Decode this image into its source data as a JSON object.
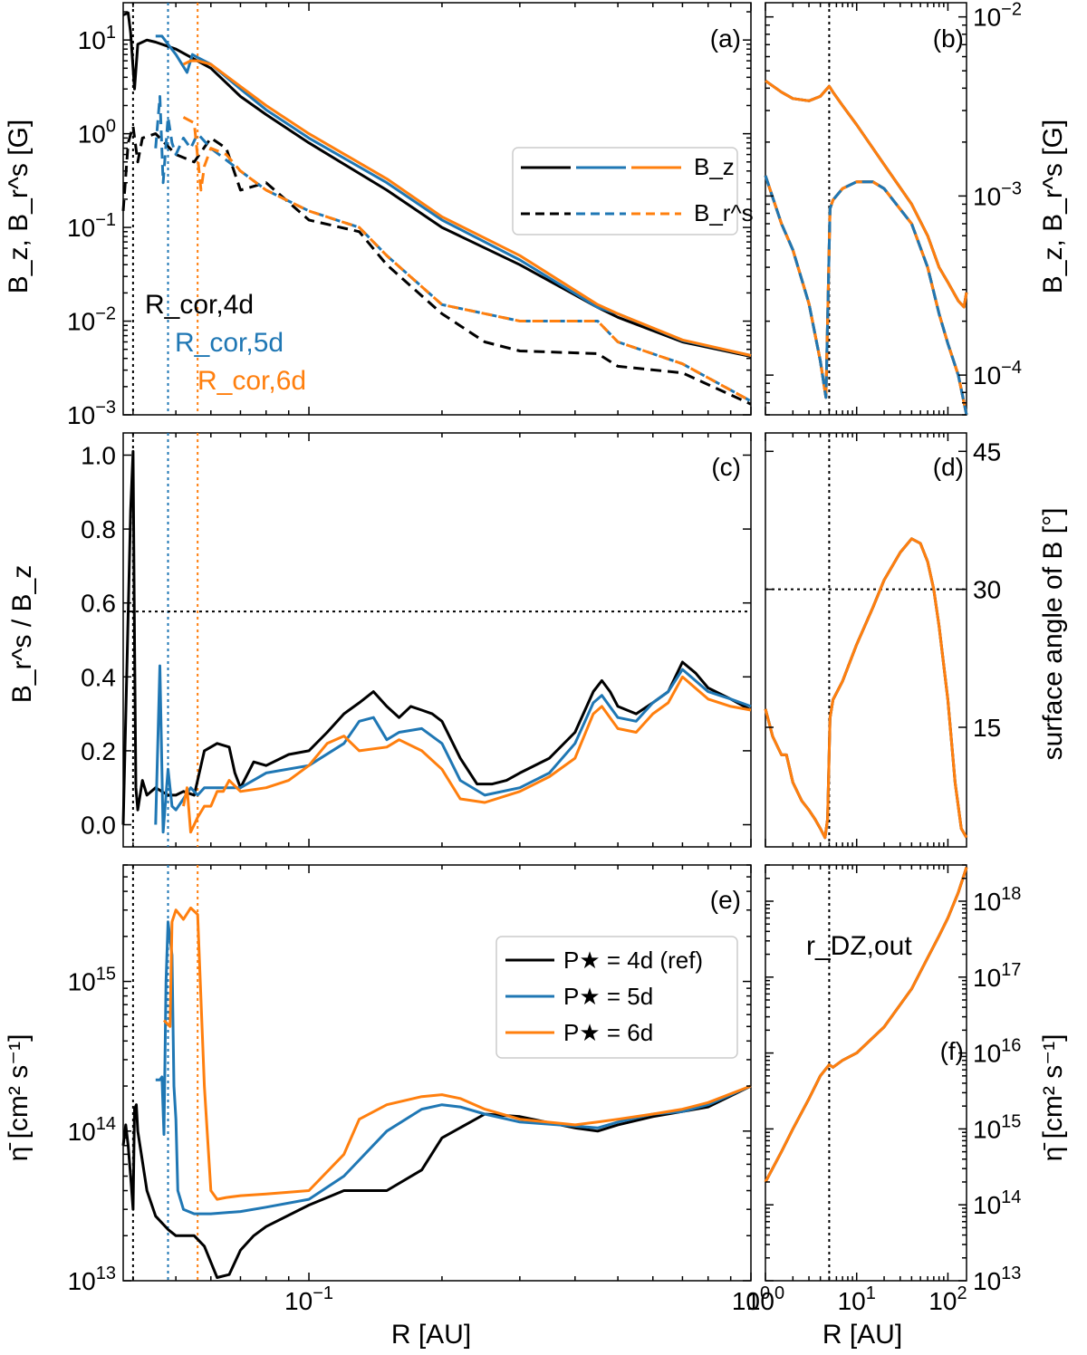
{
  "chart_data": {
    "type": "line",
    "colors": {
      "p4": "#000000",
      "p5": "#1f77b4",
      "p6": "#ff7f0e"
    },
    "xlabel_left": "R [AU]",
    "xlabel_right": "R [AU]",
    "panel_labels": {
      "a": "(a)",
      "b": "(b)",
      "c": "(c)",
      "d": "(d)",
      "e": "(e)",
      "f": "(f)"
    },
    "x_ticks_left": [
      "10^-1",
      "10^0"
    ],
    "x_ticks_right": [
      "10^0",
      "10^1",
      "10^2"
    ],
    "ylabel_a": "B_z, B_r^s [G]",
    "ylabel_b": "B_z, B_r^s [G]",
    "ylabel_c": "B_r^s / B_z",
    "ylabel_d": "surface angle of B [°]",
    "ylabel_e": "η̄ [cm² s⁻¹]",
    "ylabel_f": "η̄ [cm² s⁻¹]",
    "y_ticks_a": [
      "10^1",
      "10^0",
      "10^-1",
      "10^-2",
      "10^-3"
    ],
    "y_ticks_b": [
      "10^-2",
      "10^-3",
      "10^-4"
    ],
    "y_ticks_c": [
      "1.0",
      "0.8",
      "0.6",
      "0.4",
      "0.2",
      "0.0"
    ],
    "y_ticks_d": [
      "45",
      "30",
      "15"
    ],
    "y_ticks_e": [
      "10^15",
      "10^14",
      "10^13"
    ],
    "y_ticks_f": [
      "10^18",
      "10^17",
      "10^16",
      "10^15",
      "10^14",
      "10^13"
    ],
    "annotations": {
      "rcor4": "R_cor,4d",
      "rcor5": "R_cor,5d",
      "rcor6": "R_cor,6d",
      "rdz": "r_DZ,out"
    },
    "legend_a": {
      "bz": "B_z",
      "br": "B_r^s"
    },
    "legend_e": {
      "p4": "P★ = 4d (ref)",
      "p5": "P★ = 5d",
      "p6": "P★ = 6d"
    },
    "vlines_left": [
      0.04,
      0.048,
      0.056
    ],
    "vline_right": 5,
    "hline_c": 0.577,
    "hline_d": 30,
    "xlim_left": [
      0.038,
      1.0
    ],
    "xlim_right": [
      1,
      160
    ],
    "ylim_a": [
      0.001,
      25
    ],
    "ylim_b": [
      6e-05,
      0.012
    ],
    "ylim_c": [
      -0.06,
      1.06
    ],
    "ylim_d": [
      2,
      47
    ],
    "ylim_e": [
      10000000000000.0,
      6000000000000000.0
    ],
    "ylim_f": [
      10000000000000.0,
      3e+18
    ],
    "panel_a": {
      "bz": [
        {
          "name": "P★ = 4d",
          "color": "p4",
          "x": [
            0.038,
            0.039,
            0.0395,
            0.0403,
            0.041,
            0.043,
            0.045,
            0.05,
            0.06,
            0.07,
            0.08,
            0.1,
            0.15,
            0.2,
            0.3,
            0.45,
            0.5,
            0.7,
            1.0
          ],
          "y": [
            18.5,
            19.5,
            12,
            3,
            9,
            10,
            9.5,
            8,
            5,
            2.5,
            1.6,
            0.8,
            0.25,
            0.1,
            0.04,
            0.014,
            0.011,
            0.006,
            0.0042
          ]
        },
        {
          "name": "P★ = 5d",
          "color": "p5",
          "x": [
            0.045,
            0.0465,
            0.048,
            0.05,
            0.053,
            0.0545,
            0.056,
            0.06,
            0.07,
            0.08,
            0.1,
            0.15,
            0.2,
            0.3,
            0.45,
            0.5,
            0.7,
            1.0
          ],
          "y": [
            11,
            11,
            9,
            7,
            4.5,
            7,
            6.5,
            5.5,
            3,
            1.8,
            0.9,
            0.3,
            0.12,
            0.045,
            0.014,
            0.012,
            0.0062,
            0.0043
          ]
        },
        {
          "name": "P★ = 6d",
          "color": "p6",
          "x": [
            0.052,
            0.054,
            0.056,
            0.06,
            0.07,
            0.08,
            0.1,
            0.15,
            0.2,
            0.3,
            0.45,
            0.5,
            0.7,
            1.0
          ],
          "y": [
            5.5,
            6,
            6,
            5.5,
            3.2,
            2,
            1,
            0.33,
            0.13,
            0.05,
            0.015,
            0.012,
            0.0063,
            0.0043
          ]
        }
      ],
      "br": [
        {
          "name": "P★ = 4d",
          "color": "p4",
          "x": [
            0.038,
            0.039,
            0.04,
            0.041,
            0.042,
            0.045,
            0.05,
            0.055,
            0.06,
            0.065,
            0.07,
            0.08,
            0.1,
            0.13,
            0.15,
            0.2,
            0.25,
            0.3,
            0.45,
            0.5,
            0.7,
            1.0
          ],
          "y": [
            0.15,
            0.8,
            1.2,
            0.5,
            0.9,
            1.0,
            0.6,
            0.5,
            0.9,
            0.7,
            0.25,
            0.3,
            0.12,
            0.09,
            0.04,
            0.012,
            0.006,
            0.0048,
            0.0045,
            0.0033,
            0.0028,
            0.0013
          ]
        },
        {
          "name": "P★ = 5d",
          "color": "p5",
          "x": [
            0.045,
            0.046,
            0.0468,
            0.048,
            0.049,
            0.05,
            0.052,
            0.054,
            0.056,
            0.06,
            0.07,
            0.08,
            0.1,
            0.13,
            0.15,
            0.2,
            0.3,
            0.45,
            0.5,
            0.7,
            1.0
          ],
          "y": [
            0.7,
            2.5,
            0.3,
            1.5,
            0.8,
            0.6,
            0.9,
            0.7,
            1.0,
            0.7,
            0.4,
            0.25,
            0.15,
            0.1,
            0.05,
            0.015,
            0.01,
            0.01,
            0.006,
            0.0035,
            0.0014
          ]
        },
        {
          "name": "P★ = 6d",
          "color": "p6",
          "x": [
            0.052,
            0.055,
            0.057,
            0.058,
            0.06,
            0.065,
            0.07,
            0.08,
            0.1,
            0.13,
            0.15,
            0.2,
            0.3,
            0.45,
            0.5,
            0.7,
            1.0
          ],
          "y": [
            1.5,
            1.3,
            0.25,
            0.45,
            0.7,
            0.6,
            0.4,
            0.25,
            0.15,
            0.1,
            0.05,
            0.015,
            0.01,
            0.01,
            0.006,
            0.0035,
            0.0014
          ]
        }
      ]
    },
    "panel_b": {
      "bz": {
        "x": [
          1,
          1.5,
          2,
          3,
          4,
          5,
          5.5,
          7,
          10,
          20,
          40,
          60,
          80,
          100,
          130,
          150,
          160
        ],
        "y": [
          0.0044,
          0.0038,
          0.0035,
          0.0034,
          0.0036,
          0.0041,
          0.0038,
          0.0032,
          0.0025,
          0.0015,
          0.0009,
          0.0006,
          0.0004,
          0.00033,
          0.00026,
          0.00024,
          0.00029
        ]
      },
      "br": {
        "x": [
          1,
          1.5,
          2,
          3,
          4,
          4.6,
          5.1,
          5.5,
          7,
          10,
          15,
          20,
          40,
          60,
          80,
          100,
          130,
          160
        ],
        "y": [
          0.0013,
          0.0007,
          0.0005,
          0.00025,
          0.00012,
          7.5e-05,
          0.00085,
          0.00095,
          0.0011,
          0.0012,
          0.0012,
          0.0011,
          0.0007,
          0.0004,
          0.00022,
          0.00015,
          0.0001,
          6e-05
        ]
      }
    },
    "panel_c": [
      {
        "name": "P★ = 4d",
        "color": "p4",
        "x": [
          0.038,
          0.0395,
          0.04,
          0.0403,
          0.0406,
          0.041,
          0.042,
          0.043,
          0.045,
          0.048,
          0.05,
          0.052,
          0.055,
          0.058,
          0.062,
          0.066,
          0.068,
          0.07,
          0.075,
          0.08,
          0.09,
          0.1,
          0.11,
          0.12,
          0.13,
          0.14,
          0.15,
          0.16,
          0.17,
          0.18,
          0.19,
          0.2,
          0.22,
          0.24,
          0.26,
          0.28,
          0.3,
          0.35,
          0.4,
          0.44,
          0.46,
          0.48,
          0.5,
          0.55,
          0.6,
          0.65,
          0.7,
          0.75,
          0.8,
          0.9,
          1.0
        ],
        "y": [
          0.0,
          0.85,
          1.01,
          0.5,
          0.1,
          0.04,
          0.12,
          0.08,
          0.1,
          0.08,
          0.08,
          0.09,
          0.08,
          0.2,
          0.22,
          0.21,
          0.14,
          0.1,
          0.17,
          0.16,
          0.19,
          0.2,
          0.25,
          0.3,
          0.33,
          0.36,
          0.32,
          0.29,
          0.32,
          0.31,
          0.3,
          0.28,
          0.18,
          0.11,
          0.11,
          0.12,
          0.14,
          0.18,
          0.25,
          0.36,
          0.39,
          0.36,
          0.32,
          0.3,
          0.33,
          0.36,
          0.44,
          0.41,
          0.37,
          0.34,
          0.31
        ]
      },
      {
        "name": "P★ = 5d",
        "color": "p5",
        "x": [
          0.045,
          0.046,
          0.0468,
          0.048,
          0.049,
          0.05,
          0.052,
          0.054,
          0.056,
          0.058,
          0.062,
          0.07,
          0.08,
          0.1,
          0.12,
          0.13,
          0.14,
          0.15,
          0.16,
          0.18,
          0.2,
          0.22,
          0.25,
          0.3,
          0.35,
          0.4,
          0.44,
          0.46,
          0.5,
          0.55,
          0.6,
          0.65,
          0.7,
          0.8,
          0.9,
          1.0
        ],
        "y": [
          0.0,
          0.43,
          -0.02,
          0.15,
          0.05,
          0.04,
          0.07,
          0.1,
          0.08,
          0.1,
          0.1,
          0.1,
          0.14,
          0.16,
          0.22,
          0.28,
          0.29,
          0.23,
          0.25,
          0.26,
          0.22,
          0.12,
          0.08,
          0.1,
          0.14,
          0.22,
          0.33,
          0.35,
          0.29,
          0.28,
          0.33,
          0.36,
          0.42,
          0.36,
          0.34,
          0.32
        ]
      },
      {
        "name": "P★ = 6d",
        "color": "p6",
        "x": [
          0.052,
          0.053,
          0.054,
          0.055,
          0.056,
          0.058,
          0.06,
          0.062,
          0.064,
          0.066,
          0.07,
          0.08,
          0.09,
          0.1,
          0.11,
          0.12,
          0.13,
          0.15,
          0.16,
          0.18,
          0.2,
          0.22,
          0.25,
          0.3,
          0.35,
          0.4,
          0.44,
          0.46,
          0.5,
          0.55,
          0.6,
          0.65,
          0.7,
          0.8,
          0.9,
          1.0
        ],
        "y": [
          0.05,
          0.1,
          -0.02,
          0.0,
          0.02,
          0.05,
          0.05,
          0.09,
          0.09,
          0.12,
          0.09,
          0.1,
          0.12,
          0.16,
          0.22,
          0.24,
          0.2,
          0.21,
          0.23,
          0.2,
          0.15,
          0.07,
          0.06,
          0.09,
          0.13,
          0.18,
          0.3,
          0.32,
          0.26,
          0.25,
          0.3,
          0.33,
          0.4,
          0.34,
          0.32,
          0.31
        ]
      }
    ],
    "panel_d": {
      "x": [
        1,
        1.2,
        1.5,
        1.7,
        2,
        2.5,
        3,
        3.5,
        4,
        4.5,
        4.8,
        5.1,
        5.5,
        7,
        10,
        15,
        20,
        30,
        40,
        50,
        60,
        70,
        80,
        100,
        120,
        140,
        160
      ],
      "y": [
        17,
        14,
        12,
        12,
        9,
        7,
        6,
        5,
        4,
        3,
        5,
        16,
        18,
        20,
        24,
        28,
        31,
        34,
        35.5,
        35,
        33,
        30,
        26,
        18,
        9,
        4,
        3
      ]
    },
    "panel_e": [
      {
        "name": "P★ = 4d (ref)",
        "color": "p4",
        "x": [
          0.038,
          0.0385,
          0.039,
          0.0395,
          0.04,
          0.0403,
          0.0407,
          0.041,
          0.043,
          0.045,
          0.048,
          0.05,
          0.055,
          0.058,
          0.062,
          0.066,
          0.07,
          0.075,
          0.08,
          0.1,
          0.12,
          0.13,
          0.15,
          0.18,
          0.2,
          0.25,
          0.3,
          0.4,
          0.45,
          0.5,
          0.6,
          0.7,
          0.8,
          1.0
        ],
        "y": [
          80000000000000.0,
          110000000000000.0,
          80000000000000.0,
          50000000000000.0,
          30000000000000.0,
          140000000000000.0,
          150000000000000.0,
          100000000000000.0,
          40000000000000.0,
          27000000000000.0,
          22000000000000.0,
          20000000000000.0,
          20000000000000.0,
          17000000000000.0,
          10500000000000.0,
          11000000000000.0,
          16000000000000.0,
          20000000000000.0,
          23000000000000.0,
          32000000000000.0,
          40000000000000.0,
          40000000000000.0,
          40000000000000.0,
          55000000000000.0,
          90000000000000.0,
          130000000000000.0,
          125000000000000.0,
          105000000000000.0,
          100000000000000.0,
          110000000000000.0,
          125000000000000.0,
          135000000000000.0,
          145000000000000.0,
          200000000000000.0
        ]
      },
      {
        "name": "P★ = 5d",
        "color": "p5",
        "x": [
          0.045,
          0.046,
          0.0465,
          0.047,
          0.0475,
          0.048,
          0.049,
          0.0495,
          0.05,
          0.0505,
          0.052,
          0.055,
          0.06,
          0.07,
          0.08,
          0.1,
          0.12,
          0.15,
          0.18,
          0.2,
          0.22,
          0.25,
          0.3,
          0.4,
          0.45,
          0.5,
          0.6,
          0.7,
          0.8,
          1.0
        ],
        "y": [
          220000000000000.0,
          220000000000000.0,
          230000000000000.0,
          95000000000000.0,
          1000000000000000.0,
          2500000000000000.0,
          1500000000000000.0,
          200000000000000.0,
          120000000000000.0,
          40000000000000.0,
          30000000000000.0,
          28000000000000.0,
          28000000000000.0,
          29000000000000.0,
          31000000000000.0,
          35000000000000.0,
          50000000000000.0,
          100000000000000.0,
          140000000000000.0,
          150000000000000.0,
          145000000000000.0,
          130000000000000.0,
          115000000000000.0,
          108000000000000.0,
          105000000000000.0,
          115000000000000.0,
          130000000000000.0,
          135000000000000.0,
          150000000000000.0,
          200000000000000.0
        ]
      },
      {
        "name": "P★ = 6d",
        "color": "p6",
        "x": [
          0.047,
          0.0485,
          0.049,
          0.05,
          0.052,
          0.054,
          0.056,
          0.058,
          0.06,
          0.062,
          0.065,
          0.07,
          0.08,
          0.1,
          0.12,
          0.13,
          0.15,
          0.18,
          0.2,
          0.22,
          0.25,
          0.3,
          0.4,
          0.45,
          0.5,
          0.6,
          0.7,
          0.8,
          1.0
        ],
        "y": [
          550000000000000.0,
          500000000000000.0,
          2500000000000000.0,
          3000000000000000.0,
          2600000000000000.0,
          3100000000000000.0,
          2800000000000000.0,
          200000000000000.0,
          40000000000000.0,
          35000000000000.0,
          36000000000000.0,
          37000000000000.0,
          38000000000000.0,
          40000000000000.0,
          70000000000000.0,
          120000000000000.0,
          150000000000000.0,
          170000000000000.0,
          175000000000000.0,
          165000000000000.0,
          140000000000000.0,
          120000000000000.0,
          110000000000000.0,
          115000000000000.0,
          120000000000000.0,
          130000000000000.0,
          140000000000000.0,
          155000000000000.0,
          200000000000000.0
        ]
      }
    ],
    "panel_f": {
      "x": [
        1,
        1.5,
        2,
        3,
        4,
        5,
        5.5,
        7,
        10,
        20,
        40,
        60,
        80,
        100,
        130,
        160
      ],
      "y": [
        200000000000000.0,
        500000000000000.0,
        1000000000000000.0,
        2500000000000000.0,
        5000000000000000.0,
        7000000000000000.0,
        6500000000000000.0,
        8000000000000000.0,
        1e+16,
        2.2e+16,
        7e+16,
        1.8e+17,
        3.5e+17,
        6e+17,
        1.3e+18,
        2.8e+18
      ]
    }
  }
}
